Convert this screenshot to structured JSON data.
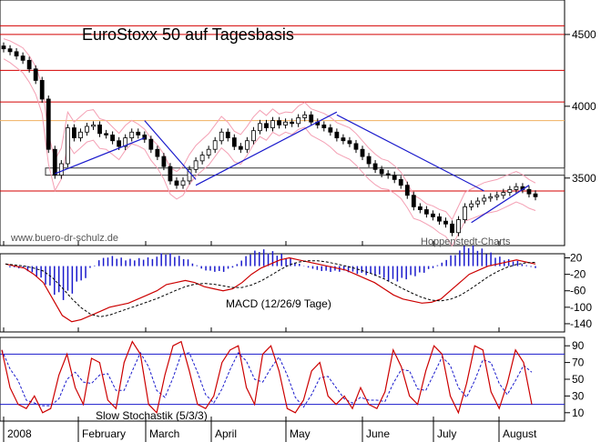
{
  "chart_data": [
    {
      "type": "candlestick",
      "title": "EuroStoxx 50 auf Tagesbasis",
      "watermark_left": "www.buero-dr-schulz.de",
      "watermark_right": "Hoppenstedt-Charts",
      "y_ticks": [
        4500,
        4000,
        3500
      ],
      "ylim": [
        3030,
        4740
      ],
      "x_months": [
        "2008",
        "February",
        "March",
        "April",
        "May",
        "June",
        "July",
        "August"
      ],
      "horizontal_levels_red": [
        4560,
        4500,
        4250,
        4030,
        3900,
        3410
      ],
      "support_zone": [
        3520,
        3570
      ],
      "close_series": [
        4400,
        4380,
        4350,
        4320,
        4260,
        4180,
        4050,
        3700,
        3520,
        3600,
        3850,
        3780,
        3820,
        3860,
        3870,
        3810,
        3800,
        3760,
        3720,
        3780,
        3820,
        3800,
        3770,
        3700,
        3650,
        3580,
        3480,
        3450,
        3480,
        3560,
        3620,
        3660,
        3700,
        3760,
        3820,
        3780,
        3720,
        3700,
        3760,
        3830,
        3880,
        3850,
        3900,
        3870,
        3890,
        3880,
        3920,
        3940,
        3890,
        3870,
        3850,
        3820,
        3780,
        3760,
        3740,
        3700,
        3650,
        3600,
        3560,
        3530,
        3520,
        3490,
        3450,
        3380,
        3300,
        3280,
        3250,
        3230,
        3200,
        3180,
        3120,
        3210,
        3300,
        3320,
        3340,
        3360,
        3370,
        3380,
        3400,
        3420,
        3440,
        3420,
        3390,
        3370
      ],
      "bollinger_color": "#f4a0b4",
      "trend_color": "#1a1acc",
      "level_color": "#d40000"
    },
    {
      "type": "line",
      "title": "MACD (12/26/9 Tage)",
      "y_ticks": [
        20,
        -20,
        -60,
        -100,
        -140
      ],
      "ylim": [
        -160,
        30
      ],
      "series": [
        {
          "name": "MACD",
          "color": "#cc0000"
        },
        {
          "name": "Signal",
          "color": "#000000"
        },
        {
          "name": "Histogram",
          "color": "#1a1acc"
        }
      ],
      "macd_values": [
        5,
        0,
        -5,
        -20,
        -40,
        -80,
        -120,
        -135,
        -130,
        -120,
        -110,
        -100,
        -95,
        -90,
        -80,
        -70,
        -60,
        -45,
        -40,
        -35,
        -40,
        -50,
        -55,
        -60,
        -55,
        -40,
        -20,
        -5,
        5,
        15,
        20,
        15,
        10,
        5,
        0,
        -5,
        -10,
        -20,
        -30,
        -40,
        -55,
        -70,
        -80,
        -85,
        -90,
        -88,
        -80,
        -60,
        -40,
        -20,
        -10,
        0,
        5,
        10,
        15,
        10,
        5
      ]
    },
    {
      "type": "line",
      "title": "Slow Stochastik (5/3/3)",
      "y_ticks": [
        90,
        70,
        50,
        30,
        10
      ],
      "ylim": [
        0,
        100
      ],
      "reference_lines": [
        20,
        80
      ],
      "series": [
        {
          "name": "%K",
          "color": "#cc0000"
        },
        {
          "name": "%D",
          "color": "#1a1acc"
        }
      ],
      "k_values": [
        85,
        40,
        20,
        15,
        30,
        10,
        15,
        55,
        80,
        40,
        20,
        75,
        70,
        25,
        15,
        70,
        95,
        80,
        20,
        10,
        55,
        90,
        95,
        60,
        20,
        15,
        30,
        70,
        85,
        90,
        40,
        20,
        80,
        90,
        60,
        15,
        10,
        25,
        60,
        70,
        30,
        20,
        30,
        15,
        40,
        20,
        15,
        35,
        85,
        65,
        30,
        20,
        60,
        90,
        80,
        30,
        10,
        45,
        90,
        85,
        35,
        15,
        45,
        85,
        70,
        20
      ]
    }
  ]
}
